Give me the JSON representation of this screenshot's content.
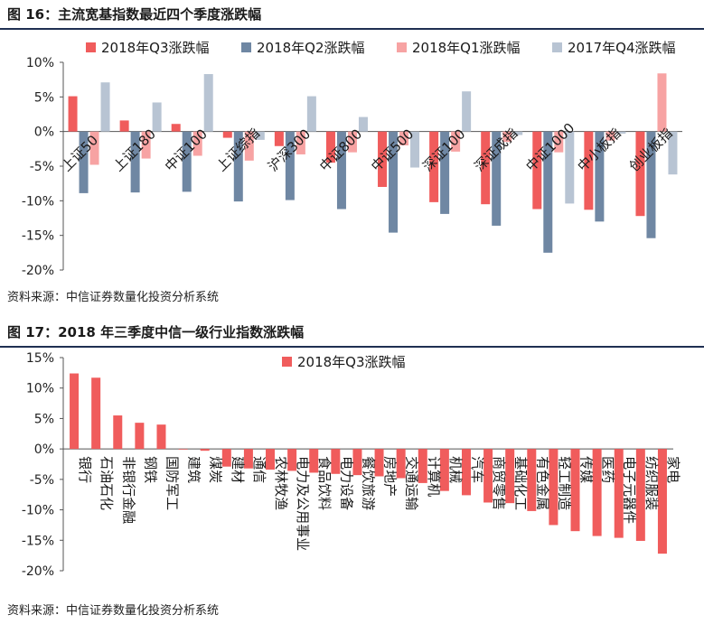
{
  "figure16": {
    "title": "图 16：主流宽基指数最近四个季度涨跌幅",
    "source": "资料来源：中信证券数量化投资分析系统",
    "chart_data": {
      "type": "bar",
      "categories": [
        "上证50",
        "上证180",
        "中证100",
        "上证综指",
        "沪深300",
        "中证800",
        "中证500",
        "深证100",
        "深证成指",
        "中证1000",
        "中小板指",
        "创业板指"
      ],
      "series": [
        {
          "name": "2018年Q3涨跌幅",
          "color": "#f05c5c",
          "values": [
            5.1,
            1.6,
            1.1,
            -0.9,
            -2.1,
            -4.5,
            -8.0,
            -10.2,
            -10.5,
            -11.2,
            -11.3,
            -12.2
          ]
        },
        {
          "name": "2018年Q2涨跌幅",
          "color": "#6f87a3",
          "values": [
            -8.9,
            -8.8,
            -8.7,
            -10.1,
            -9.9,
            -11.2,
            -14.6,
            -11.9,
            -13.6,
            -17.5,
            -13.0,
            -15.4
          ]
        },
        {
          "name": "2018年Q1涨跌幅",
          "color": "#f7a3a3",
          "values": [
            -4.8,
            -3.9,
            -3.5,
            -4.2,
            -3.3,
            -3.0,
            -2.0,
            -2.9,
            -1.5,
            -3.0,
            -1.3,
            8.4
          ]
        },
        {
          "name": "2017年Q4涨跌幅",
          "color": "#b8c4d3",
          "values": [
            7.1,
            4.2,
            8.3,
            -1.2,
            5.1,
            2.1,
            -5.2,
            5.8,
            -0.5,
            -10.4,
            -0.3,
            -6.2
          ]
        }
      ],
      "ylim": [
        -20,
        10
      ],
      "yticks": [
        "10%",
        "5%",
        "0%",
        "-5%",
        "-10%",
        "-15%",
        "-20%"
      ],
      "legend": "top"
    }
  },
  "figure17": {
    "title": "图 17：2018 年三季度中信一级行业指数涨跌幅",
    "source": "资料来源：中信证券数量化投资分析系统",
    "chart_data": {
      "type": "bar",
      "categories": [
        "银行",
        "石油石化",
        "非银行金融",
        "钢铁",
        "国防军工",
        "建筑",
        "煤炭",
        "建材",
        "通信",
        "农林牧渔",
        "电力及公用事业",
        "食品饮料",
        "电力设备",
        "餐饮旅游",
        "房地产",
        "交通运输",
        "计算机",
        "机械",
        "汽车",
        "商贸零售",
        "基础化工",
        "有色金属",
        "轻工制造",
        "传媒",
        "医药",
        "电子元器件",
        "纺织服装",
        "家电"
      ],
      "series": [
        {
          "name": "2018年Q3涨跌幅",
          "color": "#f05c5c",
          "values": [
            12.4,
            11.7,
            5.5,
            4.3,
            4.0,
            -0.1,
            -0.3,
            -2.9,
            -3.2,
            -3.4,
            -3.6,
            -3.9,
            -4.1,
            -4.3,
            -4.5,
            -4.8,
            -5.6,
            -6.9,
            -7.6,
            -8.8,
            -8.9,
            -10.2,
            -12.5,
            -13.5,
            -14.3,
            -14.6,
            -15.1,
            -17.2
          ]
        }
      ],
      "ylim": [
        -20,
        15
      ],
      "yticks": [
        "15%",
        "10%",
        "5%",
        "0%",
        "-5%",
        "-10%",
        "-15%",
        "-20%"
      ],
      "legend": "top"
    }
  }
}
